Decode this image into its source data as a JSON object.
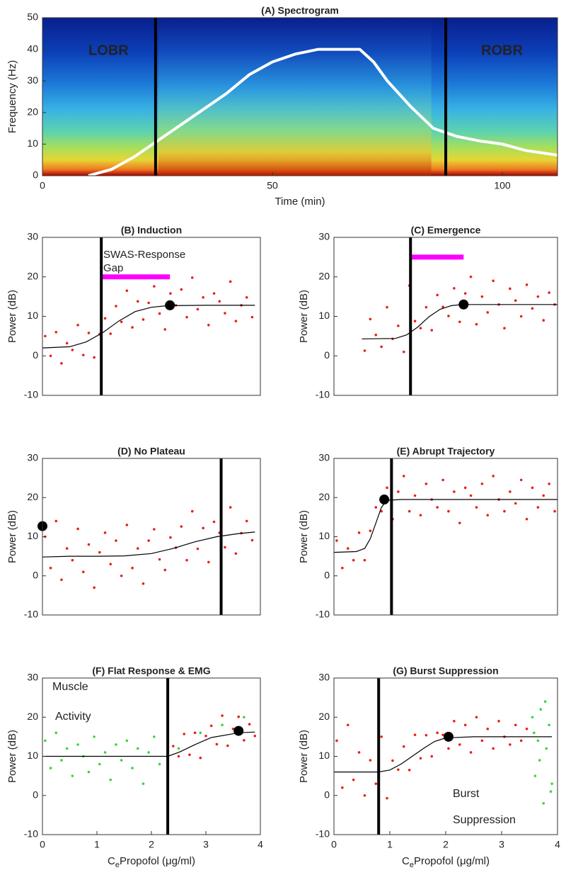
{
  "chart_data": [
    {
      "type": "line",
      "title": "(A) Spectrogram",
      "xlabel": "Time (min)",
      "ylabel": "Frequency (Hz)",
      "xlim": [
        0,
        112
      ],
      "ylim": [
        0,
        50
      ],
      "xticks": [
        0,
        50,
        100
      ],
      "yticks": [
        0,
        10,
        20,
        30,
        40,
        50
      ],
      "line": {
        "color": "#ffffff",
        "x": [
          10,
          15,
          20,
          25,
          30,
          35,
          40,
          45,
          50,
          55,
          60,
          65,
          69,
          72,
          75,
          80,
          85,
          90,
          95,
          100,
          105,
          112
        ],
        "y": [
          0,
          2,
          6,
          11,
          16,
          21,
          26,
          32,
          36,
          38.5,
          40,
          40,
          40,
          36,
          30,
          22,
          15,
          12.5,
          11,
          10,
          8,
          6.5
        ]
      },
      "vlines": [
        24.6,
        87.7
      ],
      "vline_color": "#000000",
      "annotations": [
        "LOBR",
        "ROBR"
      ],
      "annotation_color": "#f5e623"
    },
    {
      "type": "scatter",
      "title": "(B) Induction",
      "ylabel": "Power (dB)",
      "xlim": [
        0,
        4
      ],
      "ylim": [
        -10,
        30
      ],
      "yticks": [
        -10,
        0,
        10,
        20,
        30
      ],
      "series": [
        {
          "color": "#e8201c",
          "x": [
            0.05,
            0.15,
            0.25,
            0.35,
            0.45,
            0.55,
            0.65,
            0.75,
            0.85,
            0.95,
            1.05,
            1.15,
            1.25,
            1.35,
            1.45,
            1.55,
            1.65,
            1.75,
            1.85,
            1.95,
            2.05,
            2.15,
            2.25,
            2.35,
            2.45,
            2.55,
            2.65,
            2.75,
            2.85,
            2.95,
            3.05,
            3.15,
            3.25,
            3.35,
            3.45,
            3.55,
            3.65,
            3.75,
            3.85
          ],
          "y": [
            5,
            0,
            6,
            -1.9,
            3.2,
            1.5,
            7.8,
            0.2,
            5.8,
            -0.4,
            5.5,
            9.5,
            5.6,
            12.6,
            8.6,
            16.5,
            7.2,
            13.8,
            9.2,
            13.4,
            17.6,
            10.7,
            6.7,
            15.8,
            12.8,
            16.8,
            9.8,
            19.8,
            11.8,
            14.8,
            7.8,
            15.8,
            13.8,
            10.8,
            18.8,
            8.8,
            12.8,
            14.8,
            9.8
          ]
        }
      ],
      "fit": {
        "color": "#000000",
        "x": [
          0,
          0.5,
          0.8,
          1.1,
          1.4,
          1.7,
          2,
          2.3,
          3,
          3.9
        ],
        "y": [
          2,
          2.3,
          3.5,
          5.8,
          8.8,
          11.2,
          12.3,
          12.7,
          12.8,
          12.8
        ]
      },
      "vline": 1.08,
      "marker": {
        "x": 2.34,
        "y": 12.8
      },
      "bar": {
        "color": "#ff00ff",
        "x": [
          1.08,
          2.34
        ],
        "y": 20
      },
      "annotations": [
        "SWAS-Response",
        "Gap"
      ],
      "annotation_color": "#ff00ff"
    },
    {
      "type": "scatter",
      "title": "(C) Emergence",
      "ylabel": "Power (dB)",
      "xlim": [
        0,
        4
      ],
      "ylim": [
        -10,
        30
      ],
      "yticks": [
        -10,
        0,
        10,
        20,
        30
      ],
      "series": [
        {
          "color": "#e8201c",
          "x": [
            0.55,
            0.65,
            0.75,
            0.85,
            0.95,
            1.05,
            1.15,
            1.25,
            1.35,
            1.45,
            1.55,
            1.65,
            1.75,
            1.85,
            1.95,
            2.05,
            2.15,
            2.25,
            2.35,
            2.45,
            2.55,
            2.65,
            2.75,
            2.85,
            2.95,
            3.05,
            3.15,
            3.25,
            3.35,
            3.45,
            3.55,
            3.65,
            3.75,
            3.85,
            3.95
          ],
          "y": [
            1.3,
            9.3,
            5.3,
            2.3,
            12.3,
            4.3,
            7.6,
            1,
            17.8,
            8.8,
            7,
            12.3,
            6.5,
            15.4,
            12.4,
            10.1,
            17.1,
            8.6,
            15.8,
            20,
            8,
            15,
            11,
            19,
            13,
            7,
            17,
            14,
            10,
            18,
            12,
            15,
            9,
            16,
            13
          ]
        }
      ],
      "fit": {
        "color": "#000000",
        "x": [
          0.5,
          1.1,
          1.3,
          1.5,
          1.7,
          1.9,
          2.1,
          2.3,
          3,
          4
        ],
        "y": [
          4.3,
          4.4,
          5.3,
          7.3,
          9.9,
          11.8,
          12.7,
          13,
          13,
          13
        ]
      },
      "vline": 1.37,
      "marker": {
        "x": 2.32,
        "y": 13
      },
      "bar": {
        "color": "#ff00ff",
        "x": [
          1.37,
          2.32
        ],
        "y": 25
      }
    },
    {
      "type": "scatter",
      "title": "(D) No Plateau",
      "ylabel": "Power (dB)",
      "xlim": [
        0,
        4
      ],
      "ylim": [
        -10,
        30
      ],
      "yticks": [
        -10,
        0,
        10,
        20,
        30
      ],
      "series": [
        {
          "color": "#e8201c",
          "x": [
            0.05,
            0.15,
            0.25,
            0.35,
            0.45,
            0.55,
            0.65,
            0.75,
            0.85,
            0.95,
            1.05,
            1.15,
            1.25,
            1.35,
            1.45,
            1.55,
            1.65,
            1.75,
            1.85,
            1.95,
            2.05,
            2.15,
            2.25,
            2.35,
            2.45,
            2.55,
            2.65,
            2.75,
            2.85,
            2.95,
            3.05,
            3.15,
            3.25,
            3.35,
            3.45,
            3.55,
            3.65,
            3.75,
            3.85
          ],
          "y": [
            10,
            2,
            14,
            -1,
            7,
            4,
            12,
            1,
            8,
            -3,
            6,
            11,
            3,
            9,
            0,
            13,
            2,
            7,
            -2,
            9,
            11.9,
            4.2,
            1.5,
            9.8,
            7.2,
            12.6,
            4,
            16.5,
            6.9,
            12.2,
            3.5,
            13.8,
            11,
            7.3,
            17.5,
            5.7,
            10.9,
            14,
            9.1
          ]
        }
      ],
      "fit": {
        "color": "#000000",
        "x": [
          0,
          0.5,
          1,
          1.5,
          2,
          2.4,
          2.8,
          3.2,
          3.6,
          3.9
        ],
        "y": [
          4.8,
          5,
          5,
          5.1,
          5.7,
          7,
          8.7,
          10,
          10.8,
          11.2
        ]
      },
      "vline": 3.28,
      "marker": {
        "x": 0,
        "y": 12.7
      }
    },
    {
      "type": "scatter",
      "title": "(E) Abrupt Trajectory",
      "ylabel": "Power (dB)",
      "xlim": [
        0,
        4
      ],
      "ylim": [
        -10,
        30
      ],
      "yticks": [
        -10,
        0,
        10,
        20,
        30
      ],
      "series": [
        {
          "color": "#e8201c",
          "x": [
            0.05,
            0.15,
            0.25,
            0.35,
            0.45,
            0.55,
            0.65,
            0.75,
            0.85,
            0.95,
            1.05,
            1.15,
            1.25,
            1.35,
            1.45,
            1.55,
            1.65,
            1.75,
            1.85,
            1.95,
            2.05,
            2.15,
            2.25,
            2.35,
            2.45,
            2.55,
            2.65,
            2.75,
            2.85,
            2.95,
            3.05,
            3.15,
            3.25,
            3.35,
            3.45,
            3.55,
            3.65,
            3.75,
            3.85,
            3.95
          ],
          "y": [
            9,
            2,
            7,
            4,
            11,
            4,
            11.5,
            17.5,
            16.5,
            22.5,
            14.5,
            21.5,
            25.5,
            16.5,
            20.5,
            15.5,
            23.5,
            19.5,
            17.5,
            24.5,
            16.5,
            21.5,
            13.5,
            22.5,
            20.5,
            17.5,
            23.5,
            15.5,
            25.5,
            19.5,
            16.5,
            21.5,
            18.5,
            24.5,
            14.5,
            22.5,
            17.5,
            20.5,
            23.5,
            16.5
          ]
        }
      ],
      "fit": {
        "color": "#000000",
        "x": [
          0,
          0.4,
          0.55,
          0.65,
          0.75,
          0.85,
          0.95,
          1.2,
          2,
          3,
          4
        ],
        "y": [
          6,
          6.2,
          7,
          9.5,
          13.5,
          17.5,
          19.3,
          19.5,
          19.5,
          19.5,
          19.5
        ]
      },
      "vline": 1.03,
      "marker": {
        "x": 0.9,
        "y": 19.5
      }
    },
    {
      "type": "scatter",
      "title": "(F) Flat Response & EMG",
      "ylabel": "Power (dB)",
      "xlabel": {
        "symbol": "C",
        "subscript": "e",
        "text": "Propofol (μg/ml)"
      },
      "xlim": [
        0,
        4
      ],
      "ylim": [
        -10,
        30
      ],
      "xticks": [
        0,
        1,
        2,
        3,
        4
      ],
      "yticks": [
        -10,
        0,
        10,
        20,
        30
      ],
      "series": [
        {
          "color": "#3ad63a",
          "x": [
            0.05,
            0.15,
            0.25,
            0.35,
            0.45,
            0.55,
            0.65,
            0.75,
            0.85,
            0.95,
            1.05,
            1.15,
            1.25,
            1.35,
            1.45,
            1.55,
            1.65,
            1.75,
            1.85,
            1.95,
            2.05,
            2.15,
            2.5,
            2.9,
            3.3,
            3.7
          ],
          "y": [
            14,
            7,
            16,
            9,
            12,
            5,
            13,
            10,
            6,
            15,
            8,
            11,
            4,
            13,
            9,
            14,
            7,
            12,
            3,
            11,
            15,
            8,
            12,
            16,
            18,
            20
          ]
        },
        {
          "color": "#e8201c",
          "x": [
            2.3,
            2.4,
            2.5,
            2.6,
            2.7,
            2.8,
            2.9,
            3,
            3.1,
            3.2,
            3.3,
            3.4,
            3.5,
            3.6,
            3.7,
            3.8,
            3.9
          ],
          "y": [
            7.2,
            12.6,
            10,
            15.7,
            10.4,
            16,
            9.6,
            15.2,
            17.8,
            13.1,
            20.4,
            12.7,
            17,
            20.1,
            14.1,
            18.2,
            15.2
          ]
        }
      ],
      "fit": {
        "color": "#000000",
        "x": [
          0,
          1,
          2,
          2.3,
          2.5,
          2.8,
          3.1,
          3.6,
          3.9
        ],
        "y": [
          10,
          10,
          10,
          10,
          11,
          13,
          14.8,
          16,
          16.2
        ]
      },
      "vline": 2.3,
      "marker": {
        "x": 3.6,
        "y": 16.5
      },
      "annotations": [
        "Muscle",
        "Activity"
      ],
      "annotation_color": "#000000"
    },
    {
      "type": "scatter",
      "title": "(G) Burst Suppression",
      "ylabel": "Power (dB)",
      "xlabel": {
        "symbol": "C",
        "subscript": "e",
        "text": "Propofol (μg/ml)"
      },
      "xlim": [
        0,
        4
      ],
      "ylim": [
        -10,
        30
      ],
      "xticks": [
        0,
        1,
        2,
        3,
        4
      ],
      "yticks": [
        -10,
        0,
        10,
        20,
        30
      ],
      "series": [
        {
          "color": "#e8201c",
          "x": [
            0.05,
            0.15,
            0.25,
            0.35,
            0.45,
            0.55,
            0.65,
            0.75,
            0.85,
            0.95,
            1.05,
            1.15,
            1.25,
            1.35,
            1.45,
            1.55,
            1.65,
            1.75,
            1.85,
            1.95,
            2.05,
            2.15,
            2.25,
            2.35,
            2.45,
            2.55,
            2.65,
            2.75,
            2.85,
            2.95,
            3.05,
            3.15,
            3.25,
            3.35,
            3.45
          ],
          "y": [
            14,
            2,
            18,
            4,
            11,
            0,
            9,
            3,
            15,
            -0.7,
            8.9,
            6.6,
            12.5,
            6.5,
            15.5,
            9.5,
            15.4,
            10,
            16,
            15.5,
            12,
            19,
            13,
            18,
            11,
            20,
            14,
            17,
            12,
            19,
            15,
            13,
            18,
            14,
            17
          ]
        },
        {
          "color": "#3ad63a",
          "x": [
            3.55,
            3.6,
            3.65,
            3.7,
            3.75,
            3.8,
            3.85,
            3.9,
            3.58,
            3.68,
            3.78,
            3.88
          ],
          "y": [
            20,
            5,
            14,
            22,
            -2,
            12,
            18,
            3,
            16,
            9,
            24,
            1
          ]
        }
      ],
      "fit": {
        "color": "#000000",
        "x": [
          0,
          0.8,
          1,
          1.2,
          1.4,
          1.6,
          1.8,
          2,
          2.5,
          3,
          3.5,
          3.9
        ],
        "y": [
          6,
          6,
          6.5,
          8,
          10,
          12,
          13.8,
          14.7,
          15,
          15,
          15,
          15
        ]
      },
      "vline": 0.8,
      "marker": {
        "x": 2.05,
        "y": 15
      },
      "annotations": [
        "Burst",
        "Suppression"
      ],
      "annotation_color": "#000000"
    }
  ]
}
